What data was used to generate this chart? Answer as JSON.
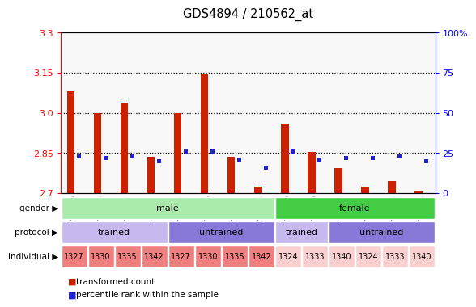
{
  "title": "GDS4894 / 210562_at",
  "samples": [
    "GSM718519",
    "GSM718520",
    "GSM718517",
    "GSM718522",
    "GSM718515",
    "GSM718516",
    "GSM718521",
    "GSM718518",
    "GSM718509",
    "GSM718510",
    "GSM718511",
    "GSM718512",
    "GSM718513",
    "GSM718514"
  ],
  "red_values": [
    3.08,
    3.0,
    3.04,
    2.835,
    3.0,
    3.148,
    2.835,
    2.725,
    2.96,
    2.855,
    2.795,
    2.725,
    2.745,
    2.705
  ],
  "blue_pct": [
    23,
    22,
    23,
    20,
    26,
    26,
    21,
    16,
    26,
    21,
    22,
    22,
    23,
    20
  ],
  "y_min": 2.7,
  "y_max": 3.3,
  "y_ticks_left": [
    2.7,
    2.85,
    3.0,
    3.15,
    3.3
  ],
  "y_ticks_right": [
    0,
    25,
    50,
    75,
    100
  ],
  "gender_groups": [
    {
      "label": "male",
      "start": 0,
      "end": 8,
      "color": "#aaeaaa"
    },
    {
      "label": "female",
      "start": 8,
      "end": 14,
      "color": "#44cc44"
    }
  ],
  "protocol_groups": [
    {
      "label": "trained",
      "start": 0,
      "end": 4,
      "color": "#c8b8f0"
    },
    {
      "label": "untrained",
      "start": 4,
      "end": 8,
      "color": "#8878d8"
    },
    {
      "label": "trained",
      "start": 8,
      "end": 10,
      "color": "#c8b8f0"
    },
    {
      "label": "untrained",
      "start": 10,
      "end": 14,
      "color": "#8878d8"
    }
  ],
  "individual_groups": [
    {
      "label": "1327",
      "start": 0,
      "end": 1,
      "color": "#f08080"
    },
    {
      "label": "1330",
      "start": 1,
      "end": 2,
      "color": "#f08080"
    },
    {
      "label": "1335",
      "start": 2,
      "end": 3,
      "color": "#f08080"
    },
    {
      "label": "1342",
      "start": 3,
      "end": 4,
      "color": "#f08080"
    },
    {
      "label": "1327",
      "start": 4,
      "end": 5,
      "color": "#f08080"
    },
    {
      "label": "1330",
      "start": 5,
      "end": 6,
      "color": "#f08080"
    },
    {
      "label": "1335",
      "start": 6,
      "end": 7,
      "color": "#f08080"
    },
    {
      "label": "1342",
      "start": 7,
      "end": 8,
      "color": "#f08080"
    },
    {
      "label": "1324",
      "start": 8,
      "end": 9,
      "color": "#f8d0d0"
    },
    {
      "label": "1333",
      "start": 9,
      "end": 10,
      "color": "#f8d0d0"
    },
    {
      "label": "1340",
      "start": 10,
      "end": 11,
      "color": "#f8d0d0"
    },
    {
      "label": "1324",
      "start": 11,
      "end": 12,
      "color": "#f8d0d0"
    },
    {
      "label": "1333",
      "start": 12,
      "end": 13,
      "color": "#f8d0d0"
    },
    {
      "label": "1340",
      "start": 13,
      "end": 14,
      "color": "#f8d0d0"
    }
  ],
  "bar_color_red": "#cc2200",
  "bar_color_blue": "#2222cc",
  "xtick_bg": "#c8c8c8",
  "legend_red": "transformed count",
  "legend_blue": "percentile rank within the sample"
}
